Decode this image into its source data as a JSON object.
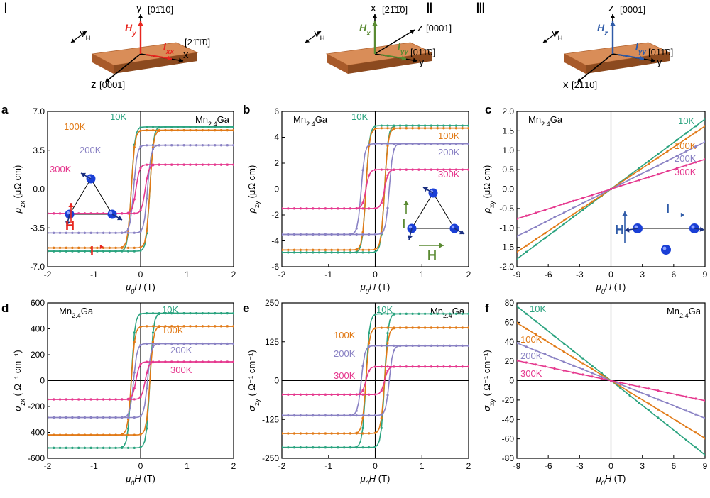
{
  "diagrams": [
    {
      "roman": "Ⅰ",
      "hlabel": "H",
      "hsub": "y",
      "ilabel": "I",
      "isub": "xx",
      "hcolor": "#e8261f",
      "vh": "V",
      "vhsub": "H",
      "vert_axis": "y",
      "vert_dir": "[01̄10]",
      "right_axis": "x",
      "right_dir": "[21̄1̄0]",
      "down_axis": "z",
      "down_dir": "[0001]"
    },
    {
      "roman": "Ⅱ",
      "hlabel": "H",
      "hsub": "x",
      "ilabel": "I",
      "isub": "yy",
      "hcolor": "#5a8a32",
      "vh": "V",
      "vhsub": "H",
      "vert_axis": "x",
      "vert_dir": "[21̄1̄0]",
      "right_axis": "y",
      "right_dir": "[011̄0]",
      "diag_axis": "z",
      "diag_dir": "[0001]"
    },
    {
      "roman": "Ⅲ",
      "hlabel": "H",
      "hsub": "z",
      "ilabel": "I",
      "isub": "yy",
      "hcolor": "#2f5ba8",
      "vh": "V",
      "vhsub": "H",
      "vert_axis": "z",
      "vert_dir": "[0001]",
      "right_axis": "y",
      "right_dir": "[011̄0]",
      "down_axis": "x",
      "down_dir": "[21̄1̄0]"
    }
  ],
  "chart_data": [
    {
      "panel": "a",
      "type": "line",
      "material": "Mn",
      "sub": "2.4",
      "material2": "Ga",
      "ylabel": "ρ",
      "ysub": "zx",
      "yunit": " (μΩ cm)",
      "xlabel": "μ0H (T)",
      "xlim": [
        -2,
        2
      ],
      "ylim": [
        -7,
        7
      ],
      "xticks": [
        -2,
        -1,
        0,
        1,
        2
      ],
      "yticks": [
        -7,
        -3.5,
        0,
        3.5,
        7
      ],
      "ytick_labels": [
        "-7.0",
        "-3.5",
        "0.0",
        "3.5",
        "7.0"
      ],
      "series": [
        {
          "name": "10K",
          "color": "#2aa37f",
          "sat": 5.6,
          "hc": 0.2
        },
        {
          "name": "100K",
          "color": "#e17a17",
          "sat": 5.3,
          "hc": 0.2
        },
        {
          "name": "200K",
          "color": "#8a82c4",
          "sat": 3.95,
          "hc": 0.15
        },
        {
          "name": "300K",
          "color": "#e5388e",
          "sat": 2.2,
          "hc": 0.1
        }
      ]
    },
    {
      "panel": "b",
      "type": "line",
      "material": "Mn",
      "sub": "2.4",
      "material2": "Ga",
      "ylabel": "ρ",
      "ysub": "zy",
      "yunit": " (μΩ cm)",
      "xlabel": "μ0H (T)",
      "xlim": [
        -2,
        2
      ],
      "ylim": [
        -6,
        6
      ],
      "xticks": [
        -2,
        -1,
        0,
        1,
        2
      ],
      "yticks": [
        -6,
        -4,
        -2,
        0,
        2,
        4,
        6
      ],
      "ytick_labels": [
        "-6",
        "-4",
        "-2",
        "0",
        "2",
        "4",
        "6"
      ],
      "series": [
        {
          "name": "10K",
          "color": "#2aa37f",
          "sat": 4.9,
          "hc": 0.2
        },
        {
          "name": "100K",
          "color": "#e17a17",
          "sat": 4.7,
          "hc": 0.2
        },
        {
          "name": "200K",
          "color": "#8a82c4",
          "sat": 3.5,
          "hc": 0.3
        },
        {
          "name": "300K",
          "color": "#e5388e",
          "sat": 1.5,
          "hc": 0.2
        }
      ]
    },
    {
      "panel": "c",
      "type": "line",
      "material": "Mn",
      "sub": "2.4",
      "material2": "Ga",
      "ylabel": "ρ",
      "ysub": "xy",
      "yunit": " (μΩ cm)",
      "xlabel": "μ0H (T)",
      "xlim": [
        -9,
        9
      ],
      "ylim": [
        -2,
        2
      ],
      "xticks": [
        -9,
        -6,
        -3,
        0,
        3,
        6,
        9
      ],
      "yticks": [
        -2,
        -1.5,
        -1,
        -0.5,
        0,
        0.5,
        1,
        1.5,
        2
      ],
      "ytick_labels": [
        "-2.0",
        "-1.5",
        "-1.0",
        "-0.5",
        "0.0",
        "0.5",
        "1.0",
        "1.5",
        "2.0"
      ],
      "series": [
        {
          "name": "10K",
          "color": "#2aa37f",
          "slope": 0.2
        },
        {
          "name": "100K",
          "color": "#e17a17",
          "slope": 0.18
        },
        {
          "name": "200K",
          "color": "#8a82c4",
          "slope": 0.135
        },
        {
          "name": "300K",
          "color": "#e5388e",
          "slope": 0.085
        }
      ]
    },
    {
      "panel": "d",
      "type": "line",
      "material": "Mn",
      "sub": "2.4",
      "material2": "Ga",
      "ylabel": "σ",
      "ysub": "zx",
      "yunit": " ( Ω⁻¹ cm⁻¹)",
      "xlabel": "μ0H (T)",
      "xlim": [
        -2,
        2
      ],
      "ylim": [
        -600,
        600
      ],
      "xticks": [
        -2,
        -1,
        0,
        1,
        2
      ],
      "yticks": [
        -600,
        -400,
        -200,
        0,
        200,
        400,
        600
      ],
      "ytick_labels": [
        "-600",
        "-400",
        "-200",
        "0",
        "200",
        "400",
        "600"
      ],
      "series": [
        {
          "name": "10K",
          "color": "#2aa37f",
          "sat": 520,
          "hc": 0.2
        },
        {
          "name": "100K",
          "color": "#e17a17",
          "sat": 420,
          "hc": 0.2
        },
        {
          "name": "200K",
          "color": "#8a82c4",
          "sat": 285,
          "hc": 0.15
        },
        {
          "name": "300K",
          "color": "#e5388e",
          "sat": 145,
          "hc": 0.1
        }
      ]
    },
    {
      "panel": "e",
      "type": "line",
      "material": "Mn",
      "sub": "2.4",
      "material2": "Ga",
      "ylabel": "σ",
      "ysub": "zy",
      "yunit": " ( Ω⁻¹ cm⁻¹)",
      "xlabel": "μ0H (T)",
      "xlim": [
        -2,
        2
      ],
      "ylim": [
        -250,
        250
      ],
      "xticks": [
        -2,
        -1,
        0,
        1,
        2
      ],
      "yticks": [
        -250,
        -125,
        0,
        125,
        250
      ],
      "ytick_labels": [
        "-250",
        "-125",
        "0",
        "125",
        "250"
      ],
      "series": [
        {
          "name": "10K",
          "color": "#2aa37f",
          "sat": 215,
          "hc": 0.2
        },
        {
          "name": "100K",
          "color": "#e17a17",
          "sat": 170,
          "hc": 0.2
        },
        {
          "name": "200K",
          "color": "#8a82c4",
          "sat": 112,
          "hc": 0.3
        },
        {
          "name": "300K",
          "color": "#e5388e",
          "sat": 45,
          "hc": 0.2
        }
      ]
    },
    {
      "panel": "f",
      "type": "line",
      "material": "Mn",
      "sub": "2.4",
      "material2": "Ga",
      "ylabel": "σ",
      "ysub": "xy",
      "yunit": " ( Ω⁻¹ cm⁻¹)",
      "xlabel": "μ0H (T)",
      "xlim": [
        -9,
        9
      ],
      "ylim": [
        -80,
        80
      ],
      "xticks": [
        -9,
        -6,
        -3,
        0,
        3,
        6,
        9
      ],
      "yticks": [
        -80,
        -60,
        -40,
        -20,
        0,
        20,
        40,
        60,
        80
      ],
      "ytick_labels": [
        "-80",
        "-60",
        "-40",
        "-20",
        "0",
        "20",
        "40",
        "60",
        "80"
      ],
      "series": [
        {
          "name": "10K",
          "color": "#2aa37f",
          "slope": -8.5
        },
        {
          "name": "100K",
          "color": "#e17a17",
          "slope": -6.6
        },
        {
          "name": "200K",
          "color": "#8a82c4",
          "slope": -4.3
        },
        {
          "name": "300K",
          "color": "#e5388e",
          "slope": -2.3
        }
      ]
    }
  ],
  "insets": {
    "a": {
      "h": "H",
      "i": "I"
    },
    "b": {
      "h": "H",
      "i": "I"
    },
    "c": {
      "h": "H",
      "i": "I"
    }
  }
}
